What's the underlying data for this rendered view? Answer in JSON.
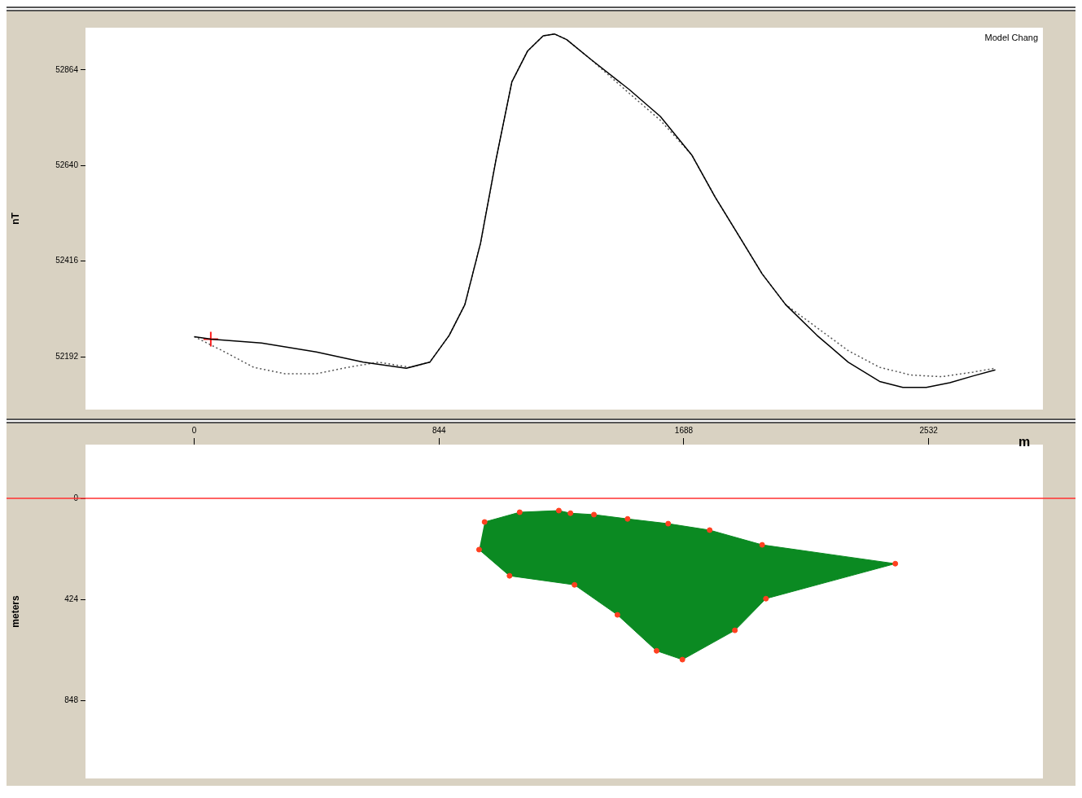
{
  "chart_data": [
    {
      "type": "line",
      "ylabel": "nT",
      "xlim": [
        -375,
        2926
      ],
      "xticks": [
        0,
        844,
        1688,
        2532
      ],
      "ylim": [
        52068,
        52963
      ],
      "yticks": [
        52192,
        52416,
        52640,
        52864
      ],
      "tick_labels": "y",
      "grid": false,
      "legend": false,
      "annotations": [
        "Model Chang"
      ],
      "series": [
        {
          "line_style": "solid",
          "marker": "none",
          "color": "#000000",
          "x": [
            0,
            57,
            232,
            421,
            583,
            731,
            812,
            879,
            933,
            987,
            1041,
            1095,
            1149,
            1203,
            1243,
            1284,
            1365,
            1500,
            1607,
            1715,
            1796,
            1877,
            1958,
            2039,
            2147,
            2255,
            2363,
            2443,
            2524,
            2605,
            2686,
            2762
          ],
          "values": [
            52239,
            52233,
            52224,
            52203,
            52179,
            52165,
            52179,
            52242,
            52314,
            52458,
            52656,
            52836,
            52908,
            52944,
            52948,
            52935,
            52890,
            52818,
            52755,
            52665,
            52566,
            52476,
            52386,
            52314,
            52242,
            52179,
            52134,
            52120,
            52120,
            52131,
            52147,
            52161
          ]
        },
        {
          "line_style": "dotted",
          "marker": "none",
          "color": "#555555",
          "x": [
            0,
            97,
            205,
            313,
            421,
            529,
            636,
            744,
            812,
            879,
            933,
            987,
            1041,
            1095,
            1149,
            1203,
            1243,
            1284,
            1365,
            1500,
            1607,
            1715,
            1796,
            1877,
            1958,
            2039,
            2147,
            2255,
            2363,
            2471,
            2578,
            2686,
            2762
          ],
          "values": [
            52239,
            52206,
            52167,
            52152,
            52152,
            52167,
            52179,
            52167,
            52179,
            52242,
            52314,
            52458,
            52656,
            52836,
            52908,
            52944,
            52948,
            52935,
            52890,
            52809,
            52746,
            52665,
            52566,
            52476,
            52386,
            52314,
            52260,
            52206,
            52167,
            52149,
            52145,
            52156,
            52165
          ]
        },
        {
          "type": "scatter",
          "marker": "cross",
          "color": "#ff2020",
          "x": [
            57
          ],
          "values": [
            52233
          ]
        }
      ]
    },
    {
      "type": "area",
      "ylabel": "meters",
      "xlabel": "m",
      "xlim": [
        -375,
        2926
      ],
      "xticks": [
        0,
        844,
        1688,
        2532
      ],
      "ylim": [
        1176,
        -226
      ],
      "yticks": [
        0,
        424,
        848
      ],
      "grid": false,
      "legend": false,
      "ref_lines": [
        {
          "axis": "y",
          "value": 0,
          "color": "#ff3030"
        }
      ],
      "series": [
        {
          "marker": "circle",
          "line_style": "solid",
          "color": "#0b8a22",
          "colors": [
            "#ff4020",
            "#ff4020",
            "#ff4020",
            "#ff4020",
            "#ff4020",
            "#ff4020",
            "#ff4020",
            "#ff4020",
            "#ff4020",
            "#ff4020",
            "#ff4020",
            "#ff4020",
            "#ff4020",
            "#ff4020",
            "#ff4020",
            "#ff4020",
            "#ff4020",
            "#ff4020"
          ],
          "x": [
            1001,
            1122,
            1257,
            1297,
            1378,
            1494,
            1634,
            1777,
            1958,
            2417,
            1971,
            1864,
            1683,
            1594,
            1459,
            1311,
            1087,
            982
          ],
          "values": [
            99,
            58,
            51,
            62,
            68,
            86,
            106,
            133,
            195,
            274,
            421,
            554,
            677,
            640,
            489,
            363,
            325,
            215
          ]
        }
      ]
    }
  ]
}
